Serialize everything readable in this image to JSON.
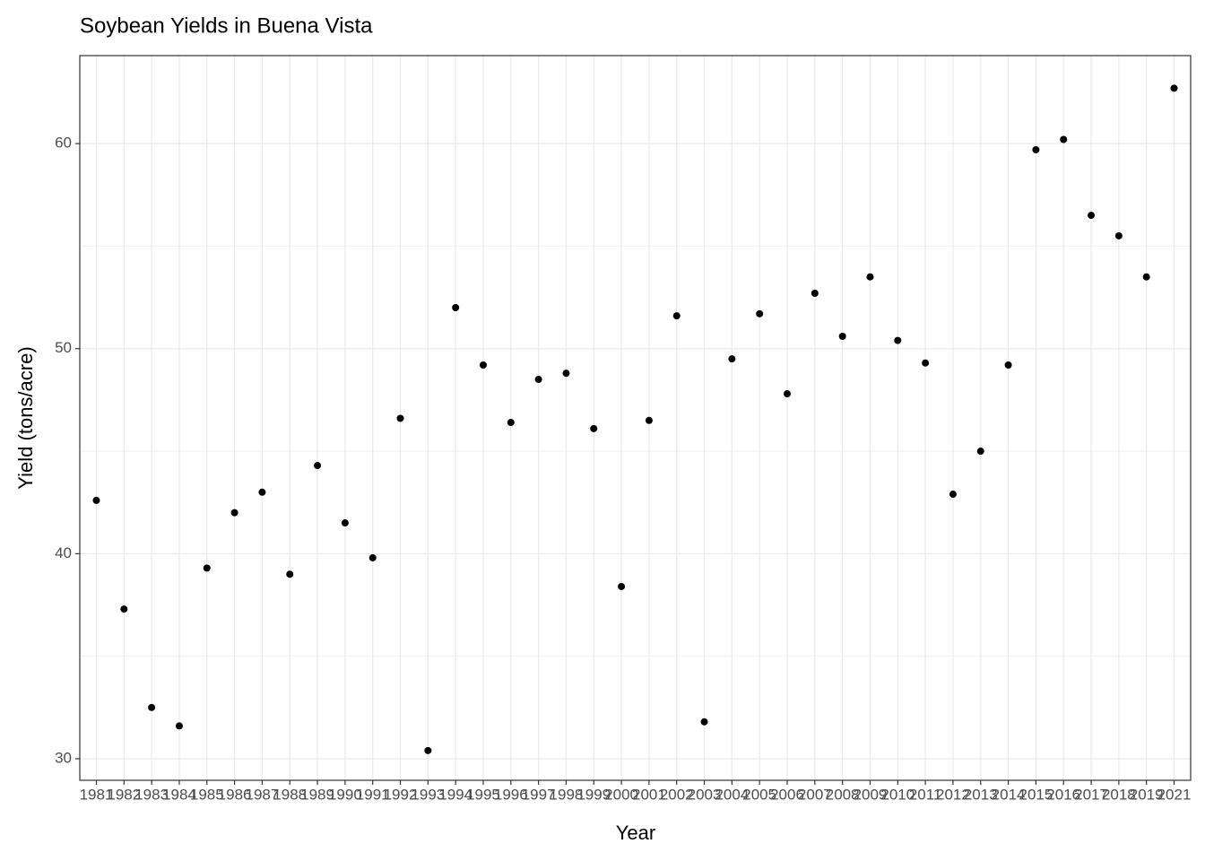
{
  "chart_data": {
    "type": "scatter",
    "title": "Soybean Yields in Buena Vista",
    "x_label": "Year",
    "y_label": "Yield (tons/acre)",
    "categories": [
      "1981",
      "1982",
      "1983",
      "1984",
      "1985",
      "1986",
      "1987",
      "1988",
      "1989",
      "1990",
      "1991",
      "1992",
      "1993",
      "1994",
      "1995",
      "1996",
      "1997",
      "1998",
      "1999",
      "2000",
      "2001",
      "2002",
      "2003",
      "2004",
      "2005",
      "2006",
      "2007",
      "2008",
      "2009",
      "2010",
      "2011",
      "2012",
      "2013",
      "2014",
      "2015",
      "2016",
      "2017",
      "2018",
      "2019",
      "2021"
    ],
    "values": [
      42.6,
      37.3,
      32.5,
      31.6,
      39.3,
      42.0,
      43.0,
      39.0,
      44.3,
      41.5,
      39.8,
      46.6,
      30.4,
      52.0,
      49.2,
      46.4,
      48.5,
      48.8,
      46.1,
      38.4,
      46.5,
      51.6,
      31.8,
      49.5,
      51.7,
      47.8,
      52.7,
      50.6,
      53.5,
      50.4,
      49.3,
      42.9,
      45.0,
      49.2,
      59.7,
      60.2,
      56.5,
      55.5,
      53.5,
      62.7
    ],
    "color": "#000000",
    "ylim": [
      28.95,
      64.29
    ],
    "yticks": [
      30,
      40,
      50,
      60
    ],
    "minor_yticks": [
      35,
      45,
      55
    ],
    "grid": true
  }
}
